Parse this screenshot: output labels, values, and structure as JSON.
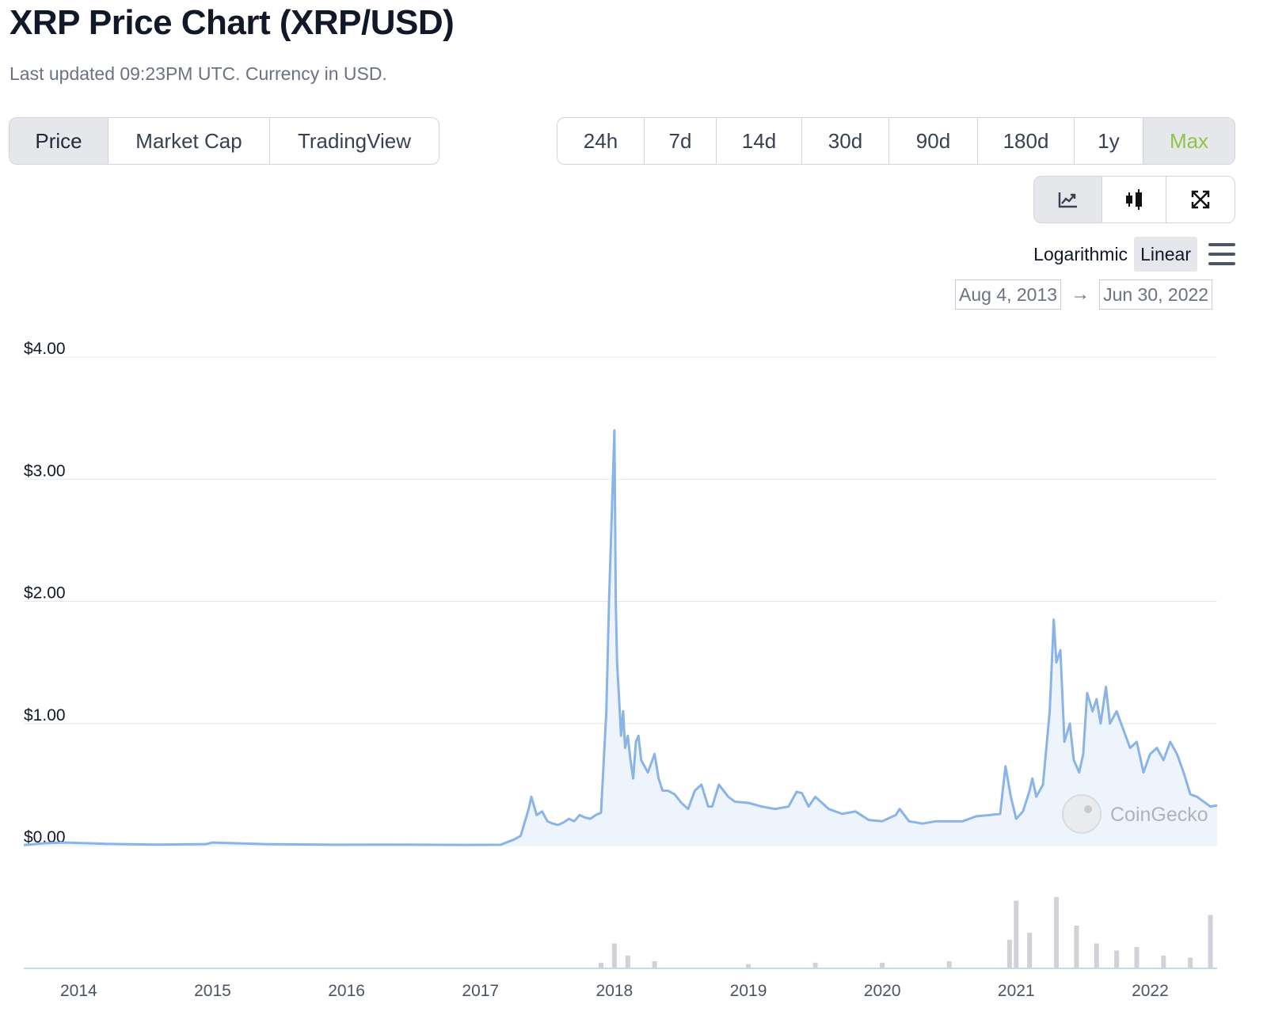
{
  "header": {
    "title": "XRP Price Chart (XRP/USD)",
    "subtitle": "Last updated 09:23PM UTC. Currency in USD."
  },
  "metric_tabs": [
    {
      "label": "Price",
      "active": true
    },
    {
      "label": "Market Cap",
      "active": false
    },
    {
      "label": "TradingView",
      "active": false
    }
  ],
  "range_tabs": [
    {
      "label": "24h",
      "active": false
    },
    {
      "label": "7d",
      "active": false
    },
    {
      "label": "14d",
      "active": false
    },
    {
      "label": "30d",
      "active": false
    },
    {
      "label": "90d",
      "active": false
    },
    {
      "label": "180d",
      "active": false
    },
    {
      "label": "1y",
      "active": false
    },
    {
      "label": "Max",
      "active": true
    }
  ],
  "view_tabs": [
    {
      "icon": "line-chart-icon",
      "active": true
    },
    {
      "icon": "candlestick-icon",
      "active": false
    },
    {
      "icon": "expand-icon",
      "active": false
    }
  ],
  "scale": {
    "logarithmic_label": "Logarithmic",
    "linear_label": "Linear",
    "active": "Linear"
  },
  "date_range": {
    "from": "Aug 4, 2013",
    "to": "Jun 30, 2022",
    "arrow": "→"
  },
  "watermark": "CoinGecko",
  "colors": {
    "line": "#8ab4e8",
    "area": "#eef4fc",
    "volume": "#cfd2d6",
    "active_green": "#8dc647",
    "grid": "#e5e7eb"
  },
  "chart_data": {
    "type": "line",
    "title": "XRP Price Chart (XRP/USD)",
    "ylabel": "",
    "xlabel": "",
    "y_scale": "linear",
    "ylim": [
      0,
      4
    ],
    "y_ticks": [
      "$0.00",
      "$1.00",
      "$2.00",
      "$3.00",
      "$4.00"
    ],
    "x_ticks": [
      "2014",
      "2015",
      "2016",
      "2017",
      "2018",
      "2019",
      "2020",
      "2021",
      "2022"
    ],
    "x_range": [
      "2013-08-04",
      "2022-06-30"
    ],
    "grid": true,
    "series": [
      {
        "values_description_x_decimal_year": true,
        "x": [
          2013.59,
          2013.75,
          2013.9,
          2014.2,
          2014.6,
          2014.95,
          2015.0,
          2015.4,
          2015.9,
          2016.4,
          2016.9,
          2017.15,
          2017.25,
          2017.3,
          2017.36,
          2017.38,
          2017.42,
          2017.46,
          2017.5,
          2017.54,
          2017.58,
          2017.62,
          2017.66,
          2017.7,
          2017.74,
          2017.78,
          2017.82,
          2017.86,
          2017.9,
          2017.94,
          2017.96,
          2017.98,
          2018.0,
          2018.01,
          2018.02,
          2018.035,
          2018.05,
          2018.065,
          2018.08,
          2018.1,
          2018.12,
          2018.14,
          2018.16,
          2018.18,
          2018.2,
          2018.25,
          2018.3,
          2018.33,
          2018.36,
          2018.4,
          2018.45,
          2018.5,
          2018.55,
          2018.6,
          2018.65,
          2018.7,
          2018.73,
          2018.78,
          2018.85,
          2018.9,
          2019.0,
          2019.1,
          2019.2,
          2019.3,
          2019.36,
          2019.4,
          2019.45,
          2019.5,
          2019.6,
          2019.7,
          2019.8,
          2019.9,
          2020.0,
          2020.1,
          2020.13,
          2020.2,
          2020.3,
          2020.4,
          2020.5,
          2020.6,
          2020.7,
          2020.8,
          2020.88,
          2020.92,
          2020.96,
          2021.0,
          2021.05,
          2021.1,
          2021.12,
          2021.15,
          2021.2,
          2021.25,
          2021.28,
          2021.3,
          2021.33,
          2021.36,
          2021.4,
          2021.43,
          2021.47,
          2021.5,
          2021.53,
          2021.57,
          2021.6,
          2021.63,
          2021.67,
          2021.7,
          2021.75,
          2021.8,
          2021.85,
          2021.9,
          2021.95,
          2022.0,
          2022.05,
          2022.1,
          2022.15,
          2022.2,
          2022.25,
          2022.3,
          2022.35,
          2022.4,
          2022.45,
          2022.5
        ],
        "y": [
          0.005,
          0.02,
          0.025,
          0.015,
          0.008,
          0.012,
          0.025,
          0.012,
          0.007,
          0.008,
          0.006,
          0.007,
          0.05,
          0.08,
          0.3,
          0.4,
          0.25,
          0.28,
          0.2,
          0.18,
          0.17,
          0.19,
          0.22,
          0.2,
          0.25,
          0.23,
          0.22,
          0.25,
          0.27,
          1.1,
          2.0,
          2.7,
          3.4,
          2.0,
          1.5,
          1.2,
          0.9,
          1.1,
          0.8,
          0.9,
          0.7,
          0.55,
          0.85,
          0.9,
          0.7,
          0.6,
          0.75,
          0.55,
          0.45,
          0.45,
          0.42,
          0.35,
          0.3,
          0.45,
          0.5,
          0.32,
          0.32,
          0.5,
          0.4,
          0.36,
          0.35,
          0.32,
          0.3,
          0.32,
          0.44,
          0.43,
          0.32,
          0.4,
          0.3,
          0.26,
          0.28,
          0.21,
          0.2,
          0.25,
          0.3,
          0.2,
          0.18,
          0.2,
          0.2,
          0.2,
          0.24,
          0.25,
          0.26,
          0.65,
          0.4,
          0.22,
          0.28,
          0.45,
          0.55,
          0.4,
          0.5,
          1.1,
          1.85,
          1.5,
          1.6,
          0.85,
          1.0,
          0.7,
          0.6,
          0.75,
          1.25,
          1.1,
          1.2,
          1.0,
          1.3,
          1.0,
          1.1,
          0.95,
          0.8,
          0.85,
          0.6,
          0.75,
          0.8,
          0.7,
          0.85,
          0.75,
          0.6,
          0.42,
          0.4,
          0.36,
          0.32,
          0.33
        ]
      }
    ],
    "volume_series": {
      "name": "Volume",
      "x": [
        2017.9,
        2018.0,
        2018.1,
        2018.3,
        2019.0,
        2019.5,
        2020.0,
        2020.5,
        2020.95,
        2021.0,
        2021.1,
        2021.3,
        2021.45,
        2021.6,
        2021.75,
        2021.9,
        2022.1,
        2022.3,
        2022.45
      ],
      "y": [
        0.08,
        0.35,
        0.18,
        0.1,
        0.06,
        0.08,
        0.08,
        0.1,
        0.4,
        0.95,
        0.5,
        1.0,
        0.6,
        0.35,
        0.25,
        0.3,
        0.18,
        0.15,
        0.75
      ]
    }
  }
}
